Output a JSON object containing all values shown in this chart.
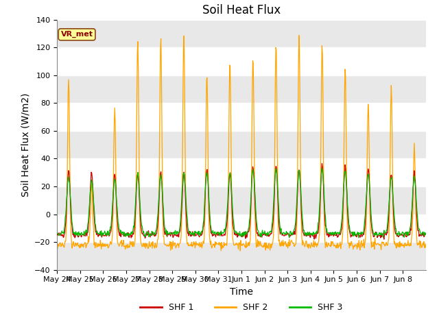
{
  "title": "Soil Heat Flux",
  "ylabel": "Soil Heat Flux (W/m2)",
  "xlabel": "Time",
  "ylim": [
    -40,
    140
  ],
  "yticks": [
    -40,
    -20,
    0,
    20,
    40,
    60,
    80,
    100,
    120,
    140
  ],
  "x_labels": [
    "May 24",
    "May 25",
    "May 26",
    "May 27",
    "May 28",
    "May 29",
    "May 30",
    "May 31",
    "Jun 1",
    "Jun 2",
    "Jun 3",
    "Jun 4",
    "Jun 5",
    "Jun 6",
    "Jun 7",
    "Jun 8"
  ],
  "shf1_color": "#CC0000",
  "shf2_color": "#FFA500",
  "shf3_color": "#00BB00",
  "background_color": "#FFFFFF",
  "plot_bg_color": "#FFFFFF",
  "band_color": "#E8E8E8",
  "legend_label1": "SHF 1",
  "legend_label2": "SHF 2",
  "legend_label3": "SHF 3",
  "vr_met_text": "VR_met",
  "vr_met_color": "#8B0000",
  "vr_met_bg": "#FFFF99",
  "vr_met_edge": "#8B4513",
  "title_fontsize": 12,
  "axis_fontsize": 10,
  "tick_fontsize": 8,
  "n_days": 16,
  "pts_per_day": 48,
  "shf1_peaks": [
    32,
    30,
    28,
    30,
    30,
    30,
    32,
    30,
    35,
    35,
    33,
    35,
    35,
    33,
    30,
    30
  ],
  "shf2_peaks": [
    97,
    23,
    76,
    126,
    128,
    130,
    102,
    110,
    113,
    124,
    131,
    123,
    105,
    80,
    93,
    50
  ],
  "shf3_peaks": [
    26,
    25,
    25,
    29,
    28,
    30,
    30,
    30,
    32,
    32,
    32,
    32,
    31,
    28,
    27,
    27
  ]
}
